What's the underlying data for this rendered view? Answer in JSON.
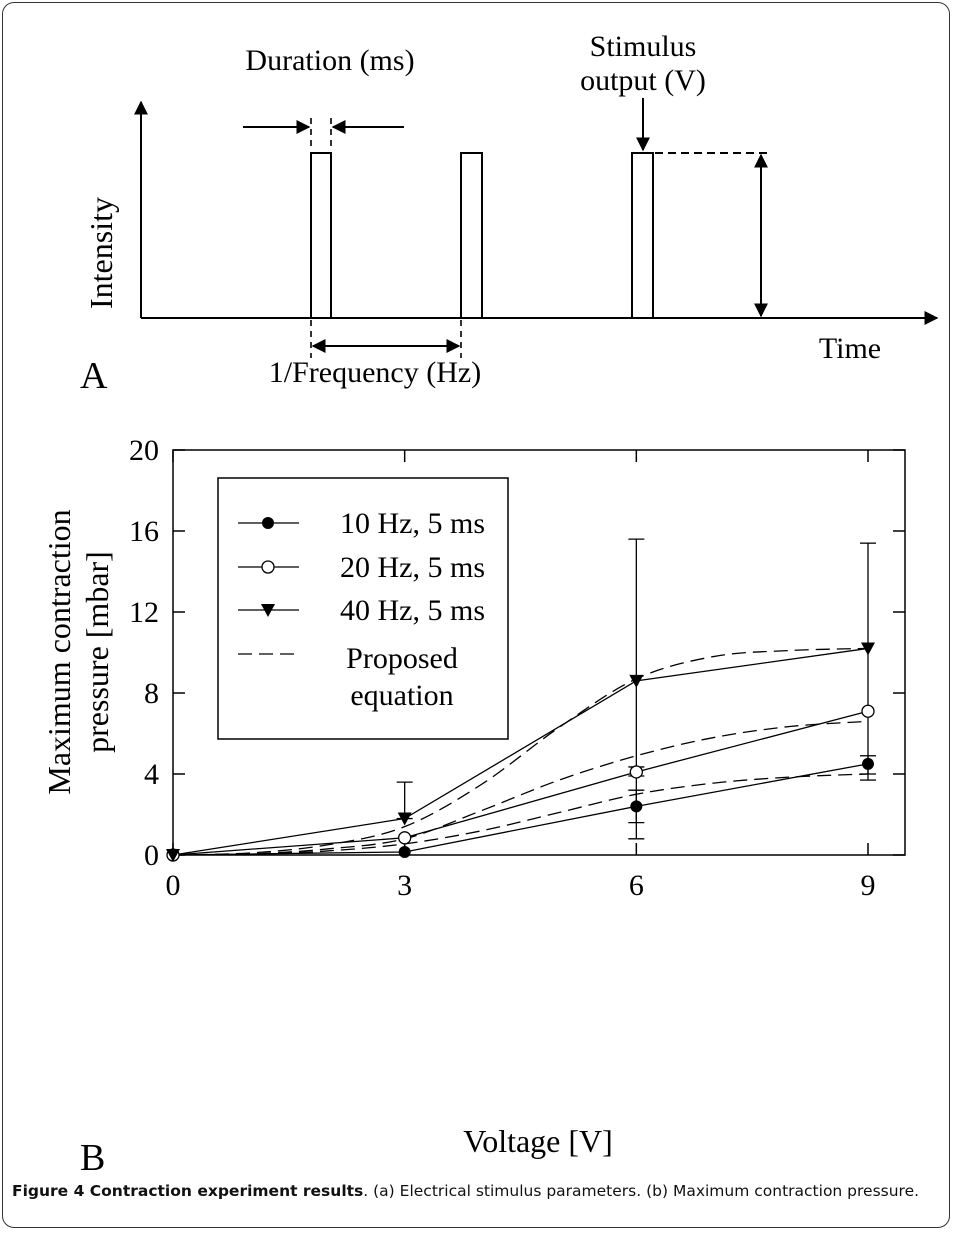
{
  "panel_a": {
    "panel_label": "A",
    "y_axis_label": "Intensity",
    "x_axis_label": "Time",
    "duration_label": "Duration (ms)",
    "stimulus_label_line1": "Stimulus",
    "stimulus_label_line2": "output (V)",
    "frequency_label": "1/Frequency (Hz)"
  },
  "chart_data": {
    "type": "line",
    "panel_label": "B",
    "xlabel": "Voltage [V]",
    "ylabel_line1": "Maximum contraction",
    "ylabel_line2": "pressure [mbar]",
    "xlim": [
      0,
      9
    ],
    "ylim": [
      0,
      20
    ],
    "x_ticks": [
      0,
      3,
      6,
      9
    ],
    "y_ticks": [
      0,
      4,
      8,
      12,
      16,
      20
    ],
    "grid": false,
    "legend_position": "top-left",
    "x": [
      0,
      3,
      6,
      9
    ],
    "series": [
      {
        "name": "10 Hz, 5 ms",
        "marker": "filled-circle",
        "values": [
          0.0,
          0.15,
          2.4,
          4.5
        ],
        "error_low": [
          0.0,
          0.15,
          1.6,
          3.7
        ],
        "error_high": [
          0.0,
          0.15,
          3.2,
          4.9
        ]
      },
      {
        "name": "20 Hz, 5 ms",
        "marker": "open-circle",
        "values": [
          0.0,
          0.85,
          4.1,
          7.1
        ],
        "error_low": [
          0.0,
          0.85,
          3.9,
          7.1
        ],
        "error_high": [
          0.0,
          0.85,
          4.35,
          7.1
        ]
      },
      {
        "name": "40 Hz, 5 ms",
        "marker": "filled-triangle-down",
        "values": [
          0.0,
          1.8,
          8.6,
          10.2
        ],
        "error_low": [
          0.0,
          1.8,
          0.8,
          4.0
        ],
        "error_high": [
          0.0,
          3.6,
          15.6,
          15.4
        ]
      }
    ],
    "fit_legend_line1": "Proposed",
    "fit_legend_line2": "equation",
    "fit_curves": [
      {
        "x": [
          0,
          1,
          2,
          3,
          4,
          5,
          6,
          7,
          8,
          9
        ],
        "values": [
          0.0,
          0.05,
          0.2,
          0.55,
          1.2,
          2.1,
          3.0,
          3.55,
          3.85,
          4.0
        ]
      },
      {
        "x": [
          0,
          1,
          2,
          3,
          4,
          5,
          6,
          7,
          8,
          9
        ],
        "values": [
          0.0,
          0.05,
          0.3,
          0.8,
          2.2,
          3.7,
          4.9,
          5.8,
          6.35,
          6.6
        ]
      },
      {
        "x": [
          0,
          1,
          2,
          3,
          4,
          5,
          6,
          7,
          8,
          9
        ],
        "values": [
          0.0,
          0.1,
          0.5,
          1.4,
          3.5,
          6.3,
          8.7,
          9.8,
          10.1,
          10.2
        ]
      }
    ]
  },
  "caption": {
    "bold": "Figure 4 Contraction experiment results",
    "rest": ". (a) Electrical stimulus parameters. (b) Maximum contraction pressure."
  }
}
